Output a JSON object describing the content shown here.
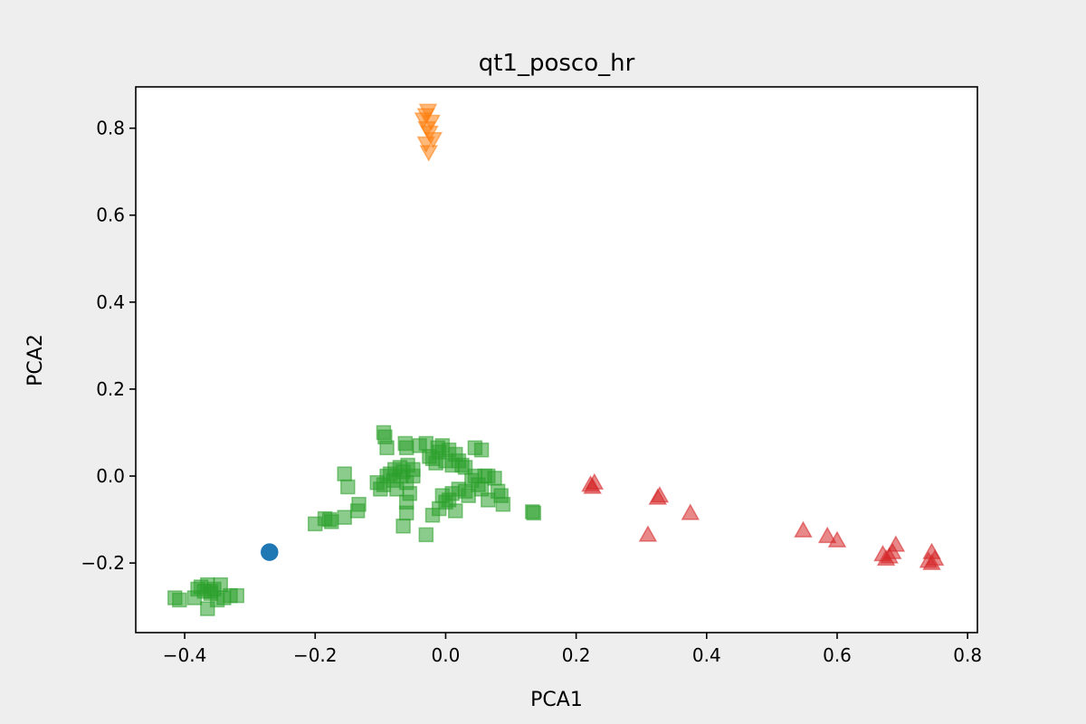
{
  "chart_data": {
    "type": "scatter",
    "title": "qt1_posco_hr",
    "xlabel": "PCA1",
    "ylabel": "PCA2",
    "xlim": [
      -0.475,
      0.815
    ],
    "ylim": [
      -0.36,
      0.895
    ],
    "xticks": [
      -0.4,
      -0.2,
      0.0,
      0.2,
      0.4,
      0.6,
      0.8
    ],
    "xtick_labels": [
      "−0.4",
      "−0.2",
      "0.0",
      "0.2",
      "0.4",
      "0.6",
      "0.8"
    ],
    "yticks": [
      -0.2,
      0.0,
      0.2,
      0.4,
      0.6,
      0.8
    ],
    "ytick_labels": [
      "−0.2",
      "0.0",
      "0.2",
      "0.4",
      "0.6",
      "0.8"
    ],
    "grid": false,
    "legend": "none",
    "series": [
      {
        "marker": "circle",
        "color": "#1f77b4",
        "alpha": 1.0,
        "points": [
          [
            -0.27,
            -0.175
          ]
        ]
      },
      {
        "marker": "triangle-down",
        "color": "#ff7f0e",
        "alpha": 0.55,
        "points": [
          [
            -0.027,
            0.84
          ],
          [
            -0.03,
            0.83
          ],
          [
            -0.034,
            0.82
          ],
          [
            -0.022,
            0.815
          ],
          [
            -0.029,
            0.8
          ],
          [
            -0.025,
            0.79
          ],
          [
            -0.019,
            0.775
          ],
          [
            -0.03,
            0.765
          ],
          [
            -0.026,
            0.745
          ]
        ]
      },
      {
        "marker": "square",
        "color": "#2ca02c",
        "alpha": 0.55,
        "points": [
          [
            -0.415,
            -0.28
          ],
          [
            -0.408,
            -0.285
          ],
          [
            -0.385,
            -0.28
          ],
          [
            -0.375,
            -0.255
          ],
          [
            -0.37,
            -0.265
          ],
          [
            -0.365,
            -0.25
          ],
          [
            -0.36,
            -0.27
          ],
          [
            -0.355,
            -0.26
          ],
          [
            -0.35,
            -0.285
          ],
          [
            -0.345,
            -0.25
          ],
          [
            -0.34,
            -0.28
          ],
          [
            -0.33,
            -0.275
          ],
          [
            -0.32,
            -0.275
          ],
          [
            -0.365,
            -0.305
          ],
          [
            -0.38,
            -0.26
          ],
          [
            -0.36,
            -0.265
          ],
          [
            -0.2,
            -0.11
          ],
          [
            -0.185,
            -0.098
          ],
          [
            -0.178,
            -0.1
          ],
          [
            -0.175,
            -0.105
          ],
          [
            -0.155,
            -0.095
          ],
          [
            -0.135,
            -0.08
          ],
          [
            -0.133,
            -0.065
          ],
          [
            -0.155,
            0.005
          ],
          [
            -0.15,
            -0.025
          ],
          [
            -0.105,
            -0.015
          ],
          [
            -0.1,
            -0.03
          ],
          [
            -0.095,
            -0.02
          ],
          [
            -0.09,
            0.0
          ],
          [
            -0.085,
            0.005
          ],
          [
            -0.08,
            -0.01
          ],
          [
            -0.078,
            0.015
          ],
          [
            -0.075,
            -0.03
          ],
          [
            -0.07,
            0.02
          ],
          [
            -0.068,
            0.0
          ],
          [
            -0.065,
            0.01
          ],
          [
            -0.06,
            -0.015
          ],
          [
            -0.058,
            0.025
          ],
          [
            -0.055,
            -0.04
          ],
          [
            -0.05,
            0.0
          ],
          [
            -0.05,
            0.015
          ],
          [
            -0.095,
            0.1
          ],
          [
            -0.093,
            0.09
          ],
          [
            -0.09,
            0.065
          ],
          [
            -0.062,
            0.075
          ],
          [
            -0.06,
            0.065
          ],
          [
            -0.04,
            0.07
          ],
          [
            -0.03,
            0.075
          ],
          [
            -0.025,
            0.045
          ],
          [
            -0.02,
            0.04
          ],
          [
            -0.015,
            0.03
          ],
          [
            -0.012,
            0.065
          ],
          [
            -0.01,
            0.055
          ],
          [
            -0.005,
            0.07
          ],
          [
            0.0,
            0.035
          ],
          [
            0.005,
            0.06
          ],
          [
            0.01,
            0.025
          ],
          [
            0.015,
            0.05
          ],
          [
            0.02,
            0.035
          ],
          [
            0.025,
            0.025
          ],
          [
            0.03,
            0.02
          ],
          [
            -0.06,
            -0.06
          ],
          [
            -0.06,
            -0.085
          ],
          [
            -0.065,
            -0.115
          ],
          [
            -0.03,
            -0.135
          ],
          [
            -0.02,
            -0.09
          ],
          [
            -0.01,
            -0.075
          ],
          [
            -0.005,
            -0.045
          ],
          [
            0.0,
            -0.06
          ],
          [
            0.005,
            -0.055
          ],
          [
            0.01,
            -0.04
          ],
          [
            0.015,
            -0.08
          ],
          [
            0.02,
            -0.03
          ],
          [
            0.03,
            -0.035
          ],
          [
            0.035,
            -0.045
          ],
          [
            0.04,
            -0.01
          ],
          [
            0.045,
            0.0
          ],
          [
            0.05,
            -0.02
          ],
          [
            0.055,
            -0.03
          ],
          [
            0.06,
            0.0
          ],
          [
            0.065,
            -0.055
          ],
          [
            0.075,
            -0.005
          ],
          [
            0.08,
            -0.035
          ],
          [
            0.085,
            -0.045
          ],
          [
            0.088,
            -0.065
          ],
          [
            0.045,
            0.065
          ],
          [
            0.055,
            0.06
          ],
          [
            0.065,
            0.0
          ],
          [
            0.133,
            -0.082
          ],
          [
            0.135,
            -0.085
          ]
        ]
      },
      {
        "marker": "triangle-up",
        "color": "#d62728",
        "alpha": 0.55,
        "points": [
          [
            0.222,
            -0.02
          ],
          [
            0.225,
            -0.025
          ],
          [
            0.228,
            -0.015
          ],
          [
            0.325,
            -0.05
          ],
          [
            0.328,
            -0.045
          ],
          [
            0.31,
            -0.135
          ],
          [
            0.375,
            -0.085
          ],
          [
            0.548,
            -0.125
          ],
          [
            0.585,
            -0.138
          ],
          [
            0.6,
            -0.148
          ],
          [
            0.67,
            -0.18
          ],
          [
            0.675,
            -0.19
          ],
          [
            0.68,
            -0.185
          ],
          [
            0.685,
            -0.175
          ],
          [
            0.69,
            -0.158
          ],
          [
            0.74,
            -0.195
          ],
          [
            0.745,
            -0.2
          ],
          [
            0.745,
            -0.175
          ],
          [
            0.75,
            -0.19
          ]
        ]
      }
    ]
  }
}
